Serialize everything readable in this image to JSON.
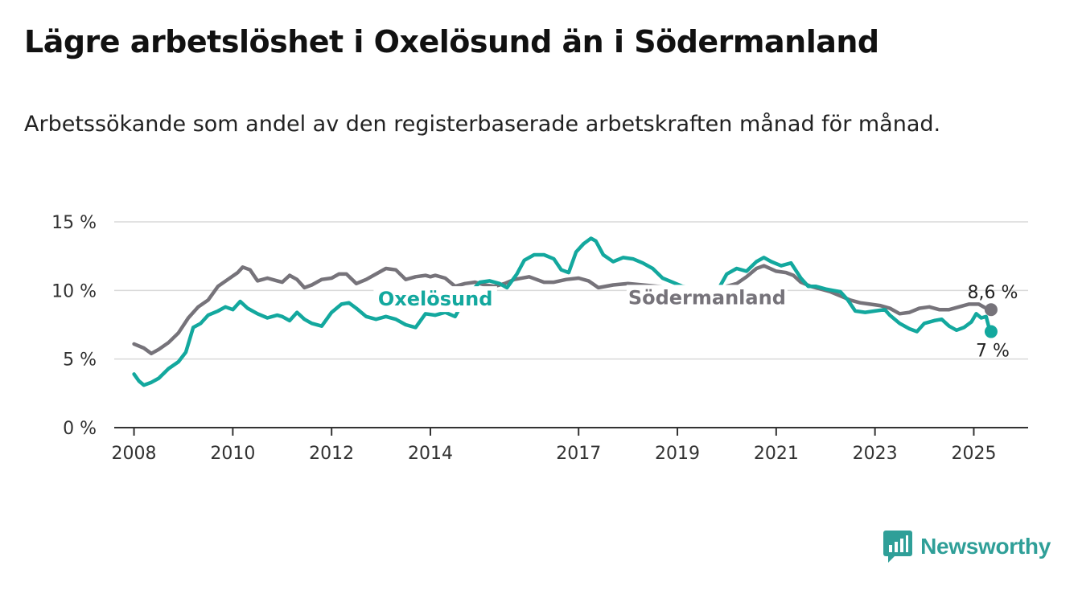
{
  "title": "Lägre arbetslöshet i Oxelösund än i Södermanland",
  "subtitle": "Arbetssökande som andel av den registerbaserade arbetskraften månad för månad.",
  "brand": {
    "name": "Newsworthy",
    "icon": "newsworthy-bar-chart-icon"
  },
  "colors": {
    "oxelosund": "#13a89e",
    "sodermanland": "#76737a",
    "grid": "#d9d9d9",
    "axis": "#333333"
  },
  "chart_data": {
    "type": "line",
    "ylim": [
      0,
      15
    ],
    "y_ticks": [
      0,
      5,
      10,
      15
    ],
    "y_tick_labels": [
      "0 %",
      "5 %",
      "10 %",
      "15 %"
    ],
    "x_range": [
      2007.6,
      2026.1
    ],
    "x_ticks": [
      "2008",
      "2010",
      "2012",
      "2014",
      "2017",
      "2019",
      "2021",
      "2023",
      "2025"
    ],
    "grid": "horizontal",
    "series": [
      {
        "name": "Södermanland",
        "end_label": "8,6 %",
        "points": [
          [
            2008.0,
            6.1
          ],
          [
            2008.2,
            5.8
          ],
          [
            2008.35,
            5.4
          ],
          [
            2008.5,
            5.7
          ],
          [
            2008.7,
            6.2
          ],
          [
            2008.9,
            6.9
          ],
          [
            2009.1,
            8.0
          ],
          [
            2009.3,
            8.8
          ],
          [
            2009.5,
            9.3
          ],
          [
            2009.7,
            10.3
          ],
          [
            2009.9,
            10.8
          ],
          [
            2010.1,
            11.3
          ],
          [
            2010.2,
            11.7
          ],
          [
            2010.35,
            11.5
          ],
          [
            2010.5,
            10.7
          ],
          [
            2010.7,
            10.9
          ],
          [
            2010.9,
            10.7
          ],
          [
            2011.0,
            10.6
          ],
          [
            2011.15,
            11.1
          ],
          [
            2011.3,
            10.8
          ],
          [
            2011.45,
            10.2
          ],
          [
            2011.6,
            10.4
          ],
          [
            2011.8,
            10.8
          ],
          [
            2012.0,
            10.9
          ],
          [
            2012.15,
            11.2
          ],
          [
            2012.3,
            11.2
          ],
          [
            2012.5,
            10.5
          ],
          [
            2012.7,
            10.8
          ],
          [
            2012.9,
            11.2
          ],
          [
            2013.1,
            11.6
          ],
          [
            2013.3,
            11.5
          ],
          [
            2013.5,
            10.8
          ],
          [
            2013.7,
            11.0
          ],
          [
            2013.9,
            11.1
          ],
          [
            2014.0,
            11.0
          ],
          [
            2014.1,
            11.1
          ],
          [
            2014.3,
            10.9
          ],
          [
            2014.5,
            10.3
          ],
          [
            2014.7,
            10.5
          ],
          [
            2014.9,
            10.6
          ],
          [
            2015.1,
            10.4
          ],
          [
            2015.3,
            10.3
          ],
          [
            2015.5,
            10.5
          ],
          [
            2015.7,
            10.8
          ],
          [
            2016.0,
            11.0
          ],
          [
            2016.3,
            10.6
          ],
          [
            2016.5,
            10.6
          ],
          [
            2016.75,
            10.8
          ],
          [
            2017.0,
            10.9
          ],
          [
            2017.2,
            10.7
          ],
          [
            2017.4,
            10.2
          ],
          [
            2017.7,
            10.4
          ],
          [
            2018.0,
            10.5
          ],
          [
            2018.3,
            10.4
          ],
          [
            2018.6,
            10.3
          ],
          [
            2018.9,
            10.2
          ],
          [
            2019.2,
            10.0
          ],
          [
            2019.5,
            9.9
          ],
          [
            2019.8,
            10.0
          ],
          [
            2020.0,
            10.3
          ],
          [
            2020.2,
            10.5
          ],
          [
            2020.4,
            11.0
          ],
          [
            2020.6,
            11.6
          ],
          [
            2020.75,
            11.8
          ],
          [
            2021.0,
            11.4
          ],
          [
            2021.2,
            11.3
          ],
          [
            2021.35,
            11.1
          ],
          [
            2021.5,
            10.6
          ],
          [
            2021.7,
            10.3
          ],
          [
            2021.9,
            10.1
          ],
          [
            2022.1,
            9.9
          ],
          [
            2022.3,
            9.6
          ],
          [
            2022.5,
            9.3
          ],
          [
            2022.7,
            9.1
          ],
          [
            2022.9,
            9.0
          ],
          [
            2023.1,
            8.9
          ],
          [
            2023.3,
            8.7
          ],
          [
            2023.5,
            8.3
          ],
          [
            2023.7,
            8.4
          ],
          [
            2023.9,
            8.7
          ],
          [
            2024.1,
            8.8
          ],
          [
            2024.3,
            8.6
          ],
          [
            2024.5,
            8.6
          ],
          [
            2024.7,
            8.8
          ],
          [
            2024.9,
            9.0
          ],
          [
            2025.1,
            9.0
          ],
          [
            2025.25,
            8.7
          ],
          [
            2025.35,
            8.6
          ]
        ]
      },
      {
        "name": "Oxelösund",
        "end_label": "7 %",
        "points": [
          [
            2008.0,
            3.9
          ],
          [
            2008.1,
            3.4
          ],
          [
            2008.2,
            3.1
          ],
          [
            2008.35,
            3.3
          ],
          [
            2008.5,
            3.6
          ],
          [
            2008.7,
            4.3
          ],
          [
            2008.9,
            4.8
          ],
          [
            2009.05,
            5.5
          ],
          [
            2009.2,
            7.3
          ],
          [
            2009.35,
            7.6
          ],
          [
            2009.5,
            8.2
          ],
          [
            2009.7,
            8.5
          ],
          [
            2009.85,
            8.8
          ],
          [
            2010.0,
            8.6
          ],
          [
            2010.15,
            9.2
          ],
          [
            2010.3,
            8.7
          ],
          [
            2010.5,
            8.3
          ],
          [
            2010.7,
            8.0
          ],
          [
            2010.9,
            8.2
          ],
          [
            2011.0,
            8.1
          ],
          [
            2011.15,
            7.8
          ],
          [
            2011.3,
            8.4
          ],
          [
            2011.45,
            7.9
          ],
          [
            2011.6,
            7.6
          ],
          [
            2011.8,
            7.4
          ],
          [
            2012.0,
            8.4
          ],
          [
            2012.2,
            9.0
          ],
          [
            2012.35,
            9.1
          ],
          [
            2012.5,
            8.7
          ],
          [
            2012.7,
            8.1
          ],
          [
            2012.9,
            7.9
          ],
          [
            2013.1,
            8.1
          ],
          [
            2013.3,
            7.9
          ],
          [
            2013.5,
            7.5
          ],
          [
            2013.7,
            7.3
          ],
          [
            2013.9,
            8.3
          ],
          [
            2014.1,
            8.2
          ],
          [
            2014.3,
            8.4
          ],
          [
            2014.5,
            8.1
          ],
          [
            2014.7,
            9.4
          ],
          [
            2014.85,
            10.0
          ],
          [
            2015.0,
            10.6
          ],
          [
            2015.2,
            10.7
          ],
          [
            2015.4,
            10.5
          ],
          [
            2015.55,
            10.2
          ],
          [
            2015.75,
            11.2
          ],
          [
            2015.9,
            12.2
          ],
          [
            2016.1,
            12.6
          ],
          [
            2016.3,
            12.6
          ],
          [
            2016.5,
            12.3
          ],
          [
            2016.65,
            11.5
          ],
          [
            2016.8,
            11.3
          ],
          [
            2016.95,
            12.8
          ],
          [
            2017.1,
            13.4
          ],
          [
            2017.25,
            13.8
          ],
          [
            2017.35,
            13.6
          ],
          [
            2017.5,
            12.6
          ],
          [
            2017.7,
            12.1
          ],
          [
            2017.9,
            12.4
          ],
          [
            2018.1,
            12.3
          ],
          [
            2018.3,
            12.0
          ],
          [
            2018.5,
            11.6
          ],
          [
            2018.7,
            10.9
          ],
          [
            2018.9,
            10.6
          ],
          [
            2019.1,
            10.3
          ],
          [
            2019.3,
            10.2
          ],
          [
            2019.55,
            10.1
          ],
          [
            2019.8,
            9.9
          ],
          [
            2020.0,
            11.2
          ],
          [
            2020.2,
            11.6
          ],
          [
            2020.4,
            11.4
          ],
          [
            2020.6,
            12.1
          ],
          [
            2020.75,
            12.4
          ],
          [
            2020.9,
            12.1
          ],
          [
            2021.1,
            11.8
          ],
          [
            2021.3,
            12.0
          ],
          [
            2021.5,
            10.9
          ],
          [
            2021.65,
            10.3
          ],
          [
            2021.8,
            10.3
          ],
          [
            2022.0,
            10.1
          ],
          [
            2022.15,
            10.0
          ],
          [
            2022.3,
            9.9
          ],
          [
            2022.45,
            9.3
          ],
          [
            2022.6,
            8.5
          ],
          [
            2022.8,
            8.4
          ],
          [
            2023.0,
            8.5
          ],
          [
            2023.2,
            8.6
          ],
          [
            2023.3,
            8.2
          ],
          [
            2023.5,
            7.6
          ],
          [
            2023.7,
            7.2
          ],
          [
            2023.85,
            7.0
          ],
          [
            2024.0,
            7.6
          ],
          [
            2024.2,
            7.8
          ],
          [
            2024.35,
            7.9
          ],
          [
            2024.5,
            7.4
          ],
          [
            2024.65,
            7.1
          ],
          [
            2024.8,
            7.3
          ],
          [
            2024.95,
            7.7
          ],
          [
            2025.05,
            8.3
          ],
          [
            2025.15,
            8.0
          ],
          [
            2025.25,
            8.1
          ],
          [
            2025.3,
            7.4
          ],
          [
            2025.35,
            7.0
          ]
        ]
      }
    ],
    "annotations": [
      {
        "text": "Oxelösund",
        "series": "Oxelösund"
      },
      {
        "text": "Södermanland",
        "series": "Södermanland"
      }
    ]
  }
}
